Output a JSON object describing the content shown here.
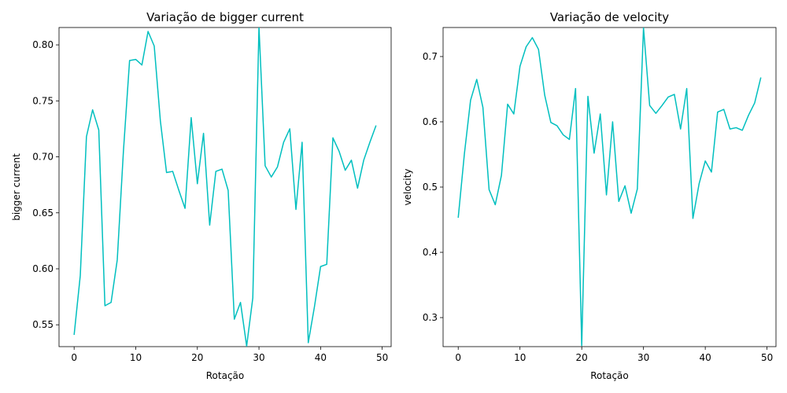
{
  "chart_data": [
    {
      "type": "line",
      "title": "Variação de bigger current",
      "xlabel": "Rotação",
      "ylabel": "bigger current",
      "xlim": [
        -2.45,
        51.45
      ],
      "ylim": [
        0.5305,
        0.8155
      ],
      "xticks": [
        0,
        10,
        20,
        30,
        40,
        50
      ],
      "yticks": [
        0.55,
        0.6,
        0.65,
        0.7,
        0.75,
        0.8
      ],
      "ytick_labels": [
        "0.55",
        "0.60",
        "0.65",
        "0.70",
        "0.75",
        "0.80"
      ],
      "grid": false,
      "line_color": "#00bfbf",
      "series": [
        {
          "x": [
            0,
            1,
            2,
            3,
            4,
            5,
            6,
            7,
            8,
            9,
            10,
            11,
            12,
            13,
            14,
            15,
            16,
            17,
            18,
            19,
            20,
            21,
            22,
            23,
            24,
            25,
            26,
            27,
            28,
            29,
            30,
            31,
            32,
            33,
            34,
            35,
            36,
            37,
            38,
            39,
            40,
            41,
            42,
            43,
            44,
            45,
            46,
            47,
            48,
            49
          ],
          "values": [
            0.541,
            0.594,
            0.718,
            0.742,
            0.724,
            0.567,
            0.57,
            0.608,
            0.705,
            0.786,
            0.787,
            0.782,
            0.812,
            0.799,
            0.732,
            0.686,
            0.687,
            0.67,
            0.654,
            0.735,
            0.676,
            0.721,
            0.639,
            0.687,
            0.689,
            0.67,
            0.555,
            0.57,
            0.531,
            0.574,
            0.816,
            0.692,
            0.682,
            0.691,
            0.713,
            0.725,
            0.653,
            0.713,
            0.534,
            0.566,
            0.602,
            0.604,
            0.717,
            0.705,
            0.688,
            0.697,
            0.672,
            0.697,
            0.713,
            0.728
          ]
        }
      ]
    },
    {
      "type": "line",
      "title": "Variação de velocity",
      "xlabel": "Rotação",
      "ylabel": "velocity",
      "xlim": [
        -2.45,
        51.45
      ],
      "ylim": [
        0.2555,
        0.7445
      ],
      "xticks": [
        0,
        10,
        20,
        30,
        40,
        50
      ],
      "yticks": [
        0.3,
        0.4,
        0.5,
        0.6,
        0.7
      ],
      "ytick_labels": [
        "0.3",
        "0.4",
        "0.5",
        "0.6",
        "0.7"
      ],
      "grid": false,
      "line_color": "#00bfbf",
      "series": [
        {
          "x": [
            0,
            1,
            2,
            3,
            4,
            5,
            6,
            7,
            8,
            9,
            10,
            11,
            12,
            13,
            14,
            15,
            16,
            17,
            18,
            19,
            20,
            21,
            22,
            23,
            24,
            25,
            26,
            27,
            28,
            29,
            30,
            31,
            32,
            33,
            34,
            35,
            36,
            37,
            38,
            39,
            40,
            41,
            42,
            43,
            44,
            45,
            46,
            47,
            48,
            49
          ],
          "values": [
            0.453,
            0.551,
            0.633,
            0.665,
            0.622,
            0.496,
            0.473,
            0.518,
            0.627,
            0.612,
            0.685,
            0.715,
            0.729,
            0.711,
            0.641,
            0.599,
            0.594,
            0.58,
            0.573,
            0.651,
            0.257,
            0.639,
            0.552,
            0.612,
            0.488,
            0.6,
            0.478,
            0.502,
            0.46,
            0.497,
            0.744,
            0.625,
            0.613,
            0.625,
            0.638,
            0.642,
            0.589,
            0.651,
            0.452,
            0.505,
            0.54,
            0.523,
            0.615,
            0.619,
            0.589,
            0.591,
            0.587,
            0.61,
            0.629,
            0.668
          ]
        }
      ]
    }
  ]
}
